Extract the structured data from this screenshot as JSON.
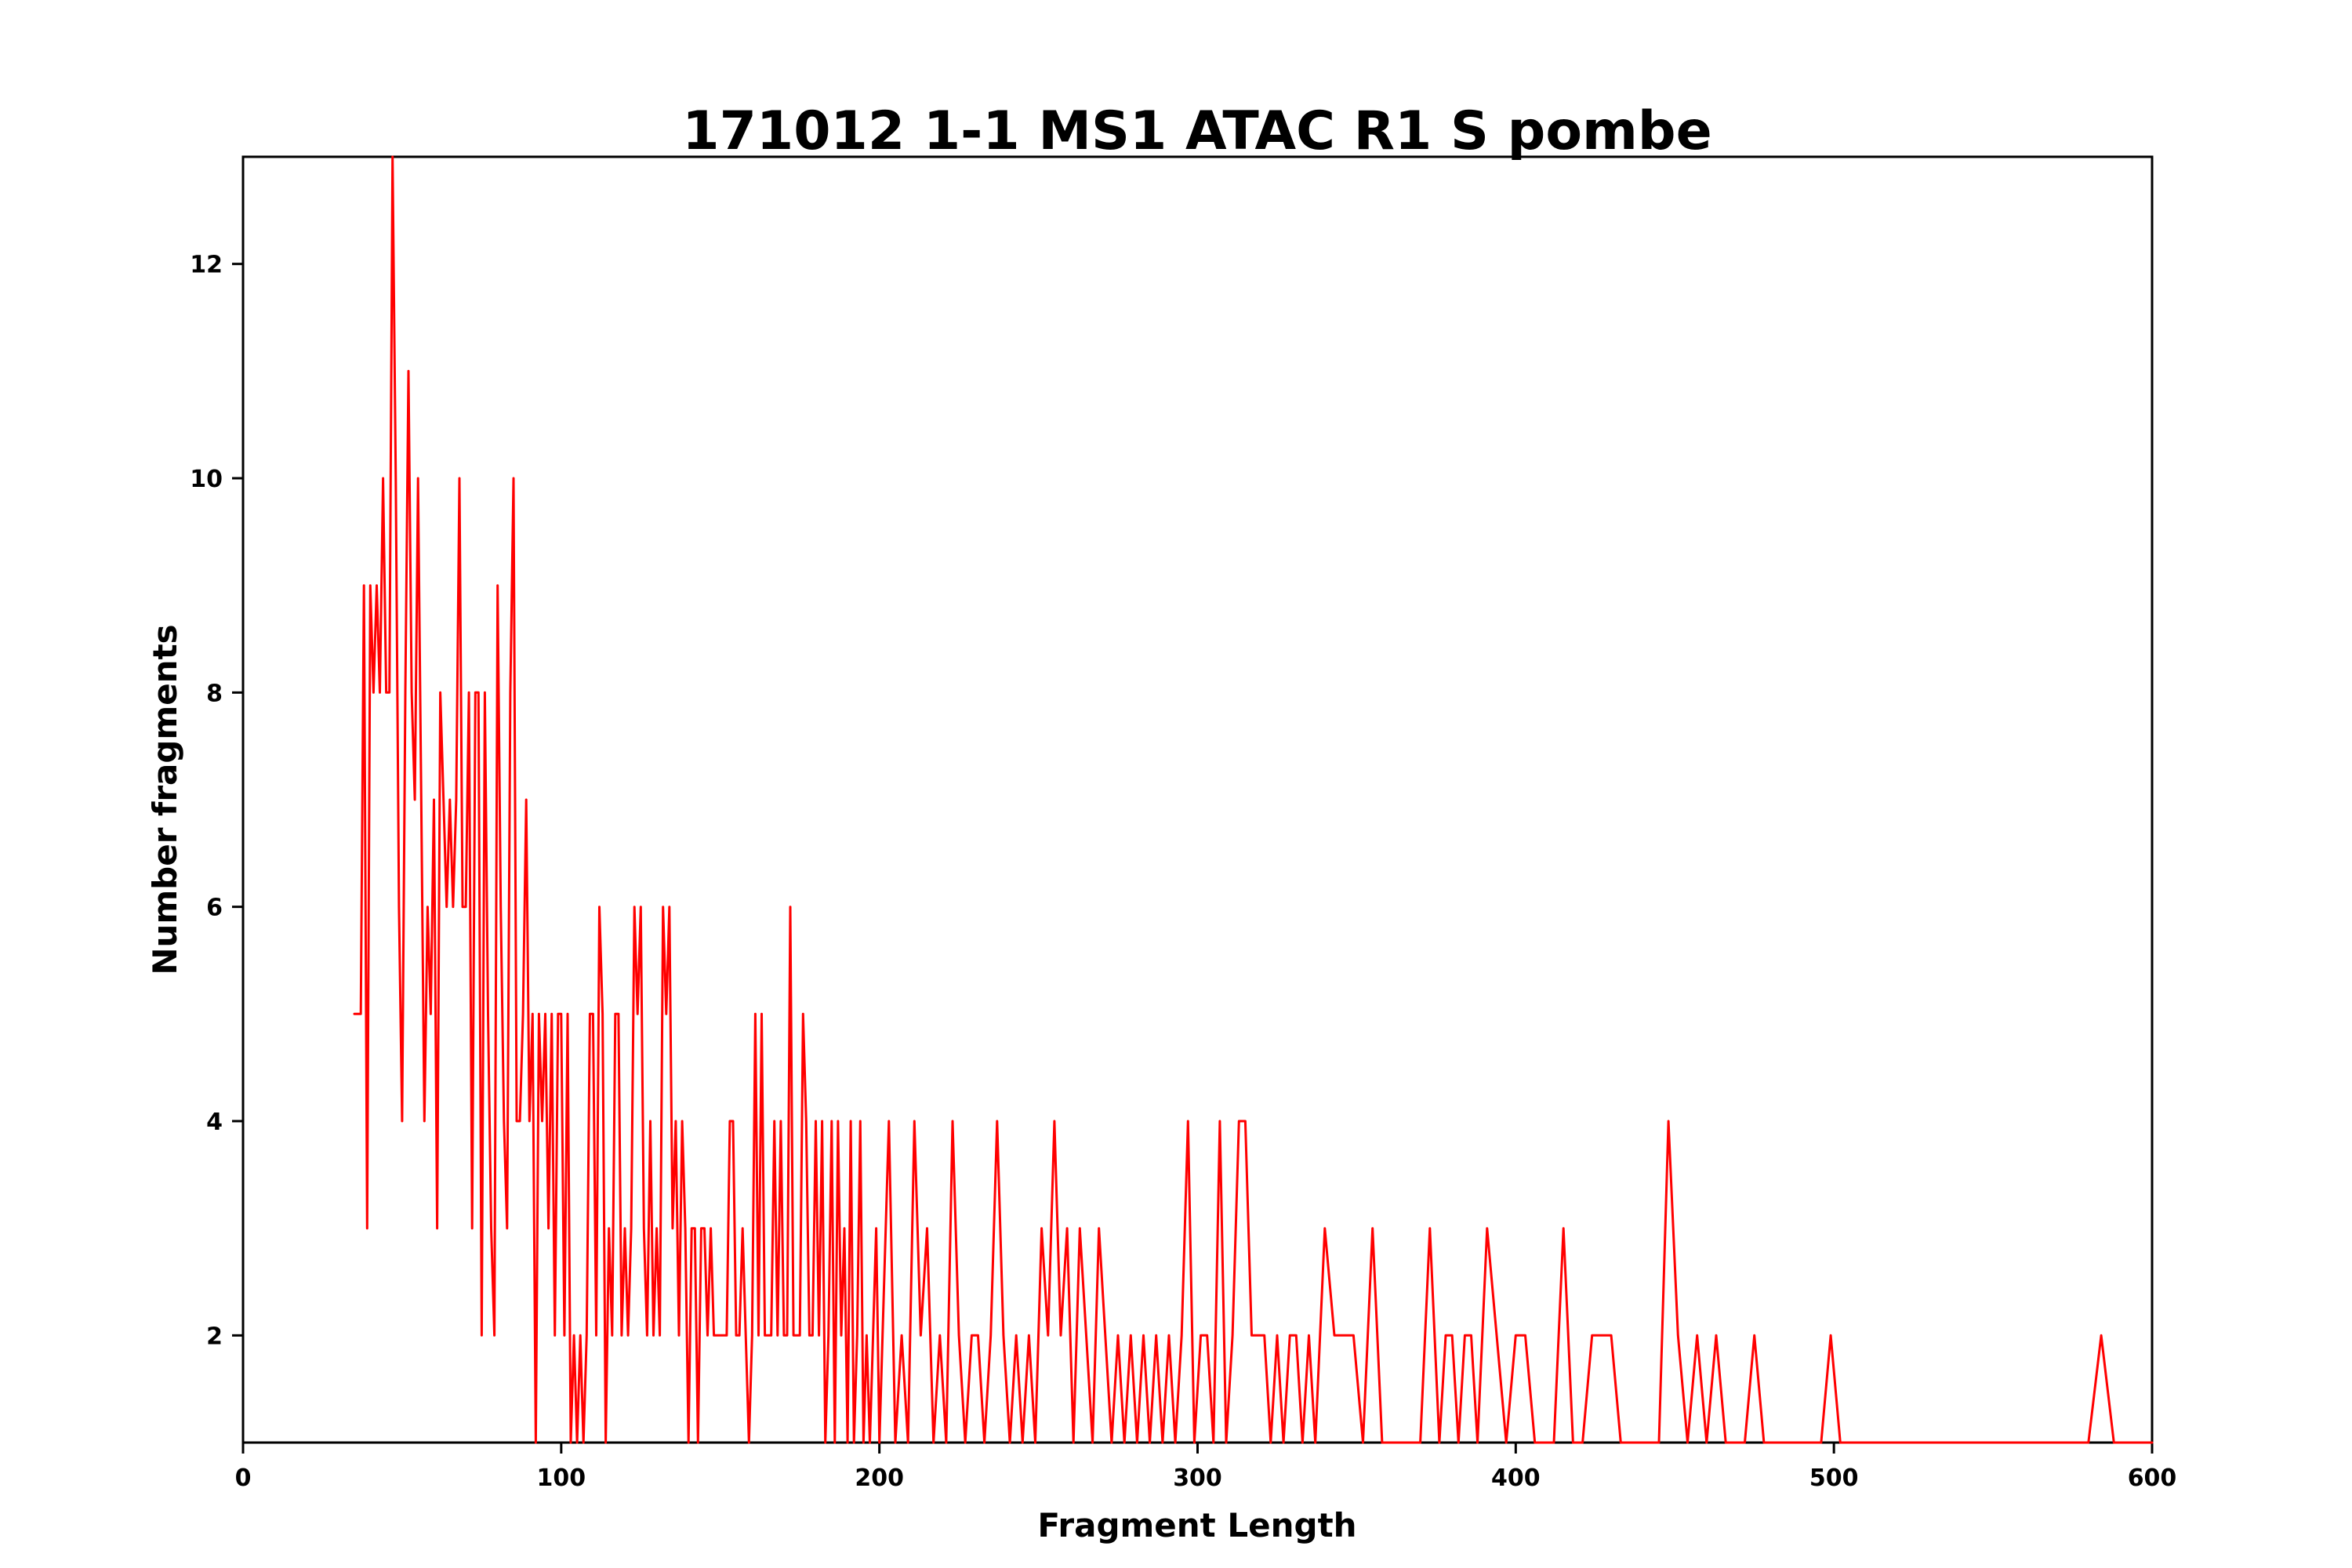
{
  "title": "171012 1-1 MS1 ATAC R1 S pombe",
  "chart_data": {
    "type": "line",
    "title": "171012 1-1 MS1 ATAC R1 S pombe",
    "xlabel": "Fragment Length",
    "ylabel": "Number fragments",
    "xlim": [
      0,
      600
    ],
    "ylim": [
      1,
      13
    ],
    "x_ticks": [
      "0",
      "100",
      "200",
      "300",
      "400",
      "500",
      "600"
    ],
    "x_tick_values": [
      0,
      100,
      200,
      300,
      400,
      500,
      600
    ],
    "y_ticks": [
      "2",
      "4",
      "6",
      "8",
      "10",
      "12"
    ],
    "y_tick_values": [
      2,
      4,
      6,
      8,
      10,
      12
    ],
    "grid": false,
    "legend_position": "none",
    "line_color": "#ff0000",
    "background_color": "#ffffff",
    "series": [
      {
        "name": "fragments",
        "points": [
          [
            35,
            5
          ],
          [
            37,
            5
          ],
          [
            38,
            9
          ],
          [
            39,
            3
          ],
          [
            40,
            9
          ],
          [
            41,
            8
          ],
          [
            42,
            9
          ],
          [
            43,
            8
          ],
          [
            44,
            10
          ],
          [
            45,
            8
          ],
          [
            46,
            8
          ],
          [
            47,
            13
          ],
          [
            48,
            10
          ],
          [
            49,
            6
          ],
          [
            50,
            4
          ],
          [
            51,
            8
          ],
          [
            52,
            11
          ],
          [
            53,
            8
          ],
          [
            54,
            7
          ],
          [
            55,
            10
          ],
          [
            56,
            7
          ],
          [
            57,
            4
          ],
          [
            58,
            6
          ],
          [
            59,
            5
          ],
          [
            60,
            7
          ],
          [
            61,
            3
          ],
          [
            62,
            8
          ],
          [
            63,
            7
          ],
          [
            64,
            6
          ],
          [
            65,
            7
          ],
          [
            66,
            6
          ],
          [
            67,
            7
          ],
          [
            68,
            10
          ],
          [
            69,
            6
          ],
          [
            70,
            6
          ],
          [
            71,
            8
          ],
          [
            72,
            3
          ],
          [
            73,
            8
          ],
          [
            74,
            8
          ],
          [
            75,
            2
          ],
          [
            76,
            8
          ],
          [
            77,
            5
          ],
          [
            78,
            3
          ],
          [
            79,
            2
          ],
          [
            80,
            9
          ],
          [
            81,
            6
          ],
          [
            82,
            4
          ],
          [
            83,
            3
          ],
          [
            84,
            8
          ],
          [
            85,
            10
          ],
          [
            86,
            4
          ],
          [
            87,
            4
          ],
          [
            88,
            5
          ],
          [
            89,
            7
          ],
          [
            90,
            4
          ],
          [
            91,
            5
          ],
          [
            92,
            1
          ],
          [
            93,
            5
          ],
          [
            94,
            4
          ],
          [
            95,
            5
          ],
          [
            96,
            3
          ],
          [
            97,
            5
          ],
          [
            98,
            2
          ],
          [
            99,
            5
          ],
          [
            100,
            5
          ],
          [
            101,
            2
          ],
          [
            102,
            5
          ],
          [
            103,
            1
          ],
          [
            104,
            2
          ],
          [
            105,
            1
          ],
          [
            106,
            2
          ],
          [
            107,
            1
          ],
          [
            108,
            2
          ],
          [
            109,
            5
          ],
          [
            110,
            5
          ],
          [
            111,
            2
          ],
          [
            112,
            6
          ],
          [
            113,
            5
          ],
          [
            114,
            1
          ],
          [
            115,
            3
          ],
          [
            116,
            2
          ],
          [
            117,
            5
          ],
          [
            118,
            5
          ],
          [
            119,
            2
          ],
          [
            120,
            3
          ],
          [
            121,
            2
          ],
          [
            122,
            3
          ],
          [
            123,
            6
          ],
          [
            124,
            5
          ],
          [
            125,
            6
          ],
          [
            126,
            3
          ],
          [
            127,
            2
          ],
          [
            128,
            4
          ],
          [
            129,
            2
          ],
          [
            130,
            3
          ],
          [
            131,
            2
          ],
          [
            132,
            6
          ],
          [
            133,
            5
          ],
          [
            134,
            6
          ],
          [
            135,
            3
          ],
          [
            136,
            4
          ],
          [
            137,
            2
          ],
          [
            138,
            4
          ],
          [
            139,
            3
          ],
          [
            140,
            1
          ],
          [
            141,
            3
          ],
          [
            142,
            3
          ],
          [
            143,
            1
          ],
          [
            144,
            3
          ],
          [
            145,
            3
          ],
          [
            146,
            2
          ],
          [
            147,
            3
          ],
          [
            148,
            2
          ],
          [
            149,
            2
          ],
          [
            150,
            2
          ],
          [
            152,
            2
          ],
          [
            153,
            4
          ],
          [
            154,
            4
          ],
          [
            155,
            2
          ],
          [
            156,
            2
          ],
          [
            157,
            3
          ],
          [
            158,
            2
          ],
          [
            159,
            1
          ],
          [
            160,
            2
          ],
          [
            161,
            5
          ],
          [
            162,
            2
          ],
          [
            163,
            5
          ],
          [
            164,
            2
          ],
          [
            165,
            2
          ],
          [
            166,
            2
          ],
          [
            167,
            4
          ],
          [
            168,
            2
          ],
          [
            169,
            4
          ],
          [
            170,
            2
          ],
          [
            171,
            2
          ],
          [
            172,
            6
          ],
          [
            173,
            2
          ],
          [
            175,
            2
          ],
          [
            176,
            5
          ],
          [
            177,
            4
          ],
          [
            178,
            2
          ],
          [
            179,
            2
          ],
          [
            180,
            4
          ],
          [
            181,
            2
          ],
          [
            182,
            4
          ],
          [
            183,
            1
          ],
          [
            184,
            2
          ],
          [
            185,
            4
          ],
          [
            186,
            1
          ],
          [
            187,
            4
          ],
          [
            188,
            2
          ],
          [
            189,
            3
          ],
          [
            190,
            1
          ],
          [
            191,
            4
          ],
          [
            192,
            1
          ],
          [
            193,
            2
          ],
          [
            194,
            4
          ],
          [
            195,
            1
          ],
          [
            196,
            2
          ],
          [
            197,
            1
          ],
          [
            198,
            2
          ],
          [
            199,
            3
          ],
          [
            200,
            1
          ],
          [
            201,
            2
          ],
          [
            203,
            4
          ],
          [
            205,
            1
          ],
          [
            207,
            2
          ],
          [
            209,
            1
          ],
          [
            211,
            4
          ],
          [
            213,
            2
          ],
          [
            215,
            3
          ],
          [
            217,
            1
          ],
          [
            219,
            2
          ],
          [
            221,
            1
          ],
          [
            223,
            4
          ],
          [
            225,
            2
          ],
          [
            227,
            1
          ],
          [
            229,
            2
          ],
          [
            231,
            2
          ],
          [
            233,
            1
          ],
          [
            235,
            2
          ],
          [
            237,
            4
          ],
          [
            239,
            2
          ],
          [
            241,
            1
          ],
          [
            243,
            2
          ],
          [
            245,
            1
          ],
          [
            247,
            2
          ],
          [
            249,
            1
          ],
          [
            251,
            3
          ],
          [
            253,
            2
          ],
          [
            255,
            4
          ],
          [
            257,
            2
          ],
          [
            259,
            3
          ],
          [
            261,
            1
          ],
          [
            263,
            3
          ],
          [
            265,
            2
          ],
          [
            267,
            1
          ],
          [
            269,
            3
          ],
          [
            271,
            2
          ],
          [
            273,
            1
          ],
          [
            275,
            2
          ],
          [
            277,
            1
          ],
          [
            279,
            2
          ],
          [
            281,
            1
          ],
          [
            283,
            2
          ],
          [
            285,
            1
          ],
          [
            287,
            2
          ],
          [
            289,
            1
          ],
          [
            291,
            2
          ],
          [
            293,
            1
          ],
          [
            295,
            2
          ],
          [
            297,
            4
          ],
          [
            299,
            1
          ],
          [
            301,
            2
          ],
          [
            303,
            2
          ],
          [
            305,
            1
          ],
          [
            307,
            4
          ],
          [
            309,
            1
          ],
          [
            311,
            2
          ],
          [
            313,
            4
          ],
          [
            315,
            4
          ],
          [
            317,
            2
          ],
          [
            319,
            2
          ],
          [
            321,
            2
          ],
          [
            323,
            1
          ],
          [
            325,
            2
          ],
          [
            327,
            1
          ],
          [
            329,
            2
          ],
          [
            331,
            2
          ],
          [
            333,
            1
          ],
          [
            335,
            2
          ],
          [
            337,
            1
          ],
          [
            340,
            3
          ],
          [
            343,
            2
          ],
          [
            346,
            2
          ],
          [
            349,
            2
          ],
          [
            352,
            1
          ],
          [
            355,
            3
          ],
          [
            358,
            1
          ],
          [
            361,
            1
          ],
          [
            364,
            1
          ],
          [
            367,
            1
          ],
          [
            370,
            1
          ],
          [
            373,
            3
          ],
          [
            376,
            1
          ],
          [
            378,
            2
          ],
          [
            380,
            2
          ],
          [
            382,
            1
          ],
          [
            384,
            2
          ],
          [
            386,
            2
          ],
          [
            388,
            1
          ],
          [
            391,
            3
          ],
          [
            394,
            2
          ],
          [
            397,
            1
          ],
          [
            400,
            2
          ],
          [
            403,
            2
          ],
          [
            406,
            1
          ],
          [
            409,
            1
          ],
          [
            412,
            1
          ],
          [
            415,
            3
          ],
          [
            418,
            1
          ],
          [
            421,
            1
          ],
          [
            424,
            2
          ],
          [
            427,
            2
          ],
          [
            430,
            2
          ],
          [
            433,
            1
          ],
          [
            436,
            1
          ],
          [
            439,
            1
          ],
          [
            442,
            1
          ],
          [
            445,
            1
          ],
          [
            448,
            4
          ],
          [
            451,
            2
          ],
          [
            454,
            1
          ],
          [
            457,
            2
          ],
          [
            460,
            1
          ],
          [
            463,
            2
          ],
          [
            466,
            1
          ],
          [
            469,
            1
          ],
          [
            472,
            1
          ],
          [
            475,
            2
          ],
          [
            478,
            1
          ],
          [
            481,
            1
          ],
          [
            484,
            1
          ],
          [
            487,
            1
          ],
          [
            490,
            1
          ],
          [
            493,
            1
          ],
          [
            496,
            1
          ],
          [
            499,
            2
          ],
          [
            502,
            1
          ],
          [
            505,
            1
          ],
          [
            510,
            1
          ],
          [
            520,
            1
          ],
          [
            530,
            1
          ],
          [
            540,
            1
          ],
          [
            550,
            1
          ],
          [
            560,
            1
          ],
          [
            570,
            1
          ],
          [
            580,
            1
          ],
          [
            584,
            2
          ],
          [
            588,
            1
          ],
          [
            592,
            1
          ],
          [
            596,
            1
          ],
          [
            600,
            1
          ]
        ]
      }
    ]
  }
}
